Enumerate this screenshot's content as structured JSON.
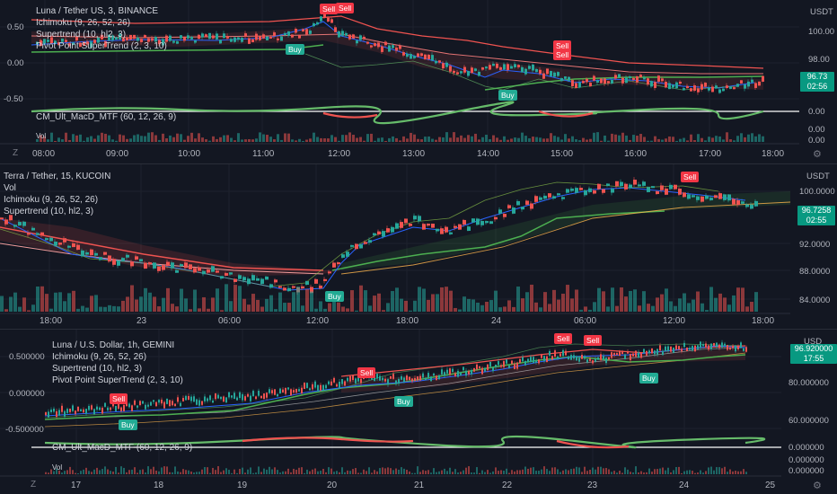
{
  "panes": [
    {
      "legend": [
        "Luna / Tether US, 3, BINANCE",
        "Ichimoku (9, 26, 52, 26)",
        "Supertrend (10, hl2, 3)",
        "Pivot Point SuperTrend (2, 3, 10)"
      ],
      "sub_legend": [
        "CM_Ult_MacD_MTF (60, 12, 26, 9)",
        "Vol"
      ],
      "currency": "USDT",
      "left_axis": [
        "0.50",
        "0.00",
        "-0.50"
      ],
      "right_axis": [
        "100.00",
        "98.00"
      ],
      "sub_axis": [
        "0.00",
        "0.00",
        "0.00"
      ],
      "price_tag": {
        "value": "96.73",
        "countdown": "02:56"
      },
      "time_axis": [
        "08:00",
        "09:00",
        "10:00",
        "11:00",
        "12:00",
        "13:00",
        "14:00",
        "15:00",
        "16:00",
        "17:00",
        "18:00"
      ],
      "signals": [
        "Sell",
        "Sell",
        "Sell",
        "Sell",
        "Buy",
        "Buy"
      ]
    },
    {
      "legend": [
        "Terra / Tether, 15, KUCOIN",
        "Vol",
        "Ichimoku (9, 26, 52, 26)",
        "Supertrend (10, hl2, 3)"
      ],
      "currency": "USDT",
      "right_axis": [
        "100.0000",
        "92.0000",
        "88.0000",
        "84.0000"
      ],
      "price_tag": {
        "value": "96.7258",
        "countdown": "02:55"
      },
      "time_axis": [
        "18:00",
        "23",
        "06:00",
        "12:00",
        "18:00",
        "24",
        "06:00",
        "12:00",
        "18:00"
      ],
      "signals": [
        "Sell",
        "Buy"
      ]
    },
    {
      "legend": [
        "Luna / U.S. Dollar, 1h, GEMINI",
        "Ichimoku (9, 26, 52, 26)",
        "Supertrend (10, hl2, 3)",
        "Pivot Point SuperTrend (2, 3, 10)"
      ],
      "sub_legend": [
        "CM_Ult_MacD_MTF (60, 12, 26, 9)",
        "Vol"
      ],
      "currency": "USD",
      "left_axis": [
        "0.500000",
        "0.000000",
        "-0.500000"
      ],
      "right_axis": [
        "80.000000",
        "60.000000"
      ],
      "sub_axis": [
        "0.000000",
        "0.000000",
        "0.000000"
      ],
      "price_tag": {
        "value": "96.920000",
        "countdown": "17:55"
      },
      "time_axis": [
        "17",
        "18",
        "19",
        "20",
        "21",
        "22",
        "23",
        "24",
        "25"
      ],
      "signals": [
        "Sell",
        "Sell",
        "Sell",
        "Sell",
        "Buy",
        "Buy",
        "Buy"
      ]
    }
  ],
  "colors": {
    "bg": "#131722",
    "up": "#26a69a",
    "down": "#ef5350",
    "sell": "#f23645",
    "buy": "#22ab94",
    "price_tag": "#089981"
  }
}
